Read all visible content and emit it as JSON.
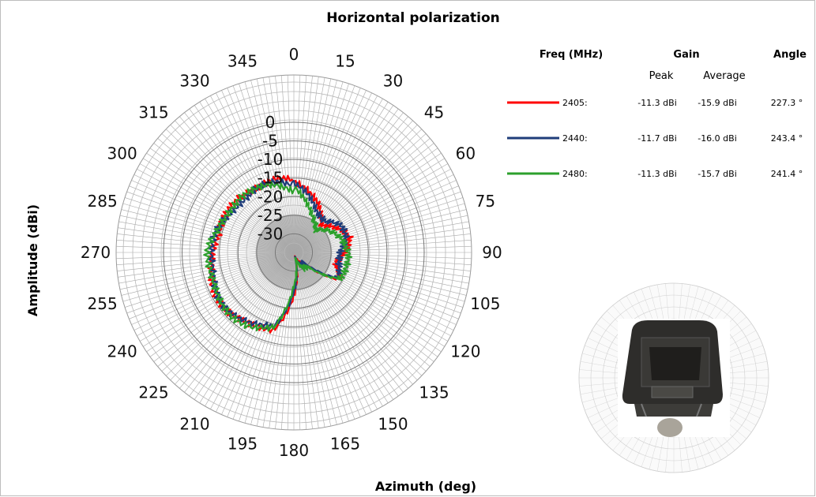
{
  "chart_data": {
    "type": "polar-line",
    "title": "Horizontal polarization",
    "xlabel": "Azimuth (deg)",
    "ylabel": "Amplitude (dBi)",
    "angular_ticks": [
      "0",
      "15",
      "30",
      "45",
      "60",
      "75",
      "90",
      "105",
      "120",
      "135",
      "150",
      "165",
      "180",
      "195",
      "210",
      "225",
      "240",
      "255",
      "270",
      "285",
      "300",
      "315",
      "330",
      "345"
    ],
    "radial_ticks": [
      "0",
      "-5",
      "-10",
      "-15",
      "-20",
      "-25",
      "-30"
    ],
    "rlim": [
      -35,
      0
    ],
    "angular_direction": "clockwise",
    "zero_location": "top",
    "grid": true,
    "legend_headers": {
      "freq": "Freq (MHz)",
      "gain": "Gain",
      "peak": "Peak",
      "average": "Average",
      "angle": "Angle"
    },
    "series": [
      {
        "name": "2405:",
        "color": "#ff0000",
        "peak": "-11.3 dBi",
        "average": "-15.9 dBi",
        "angle": "227.3 °",
        "angles": [
          0,
          15,
          30,
          45,
          60,
          75,
          90,
          105,
          120,
          135,
          150,
          165,
          180,
          195,
          210,
          225,
          240,
          255,
          270,
          285,
          300,
          315,
          330,
          345,
          360
        ],
        "values": [
          -16,
          -19,
          -21,
          -24,
          -22,
          -20,
          -21,
          -23,
          -21,
          -31,
          -31,
          -33,
          -24,
          -13.5,
          -12,
          -11.3,
          -11.5,
          -12,
          -12.5,
          -14.5,
          -14.5,
          -14,
          -14.5,
          -15,
          -16
        ]
      },
      {
        "name": "2440:",
        "color": "#1f3d7a",
        "peak": "-11.7 dBi",
        "average": "-16.0 dBi",
        "angle": "243.4 °",
        "angles": [
          0,
          15,
          30,
          45,
          60,
          75,
          90,
          105,
          120,
          135,
          150,
          165,
          180,
          195,
          210,
          225,
          240,
          255,
          270,
          285,
          300,
          315,
          330,
          345,
          360
        ],
        "values": [
          -17,
          -19.5,
          -22,
          -23,
          -21,
          -20.5,
          -22,
          -22.5,
          -22,
          -31,
          -30,
          -34,
          -25,
          -14,
          -12.5,
          -12,
          -11.7,
          -12,
          -12.5,
          -14,
          -15,
          -15,
          -15,
          -16,
          -17
        ]
      },
      {
        "name": "2480:",
        "color": "#2ca02c",
        "peak": "-11.3 dBi",
        "average": "-15.7 dBi",
        "angle": "241.4 °",
        "angles": [
          0,
          15,
          30,
          45,
          60,
          75,
          90,
          105,
          120,
          135,
          150,
          165,
          180,
          195,
          210,
          225,
          240,
          255,
          270,
          285,
          300,
          315,
          330,
          345,
          360
        ],
        "values": [
          -18,
          -21,
          -24,
          -27,
          -24,
          -21,
          -20,
          -21,
          -21,
          -29,
          -30,
          -34,
          -26,
          -13.5,
          -12,
          -11.5,
          -11.3,
          -11.5,
          -12,
          -14,
          -14,
          -14,
          -15.5,
          -16.5,
          -18
        ]
      }
    ]
  },
  "inset_image": {
    "icon": "antenna-device-photo"
  }
}
